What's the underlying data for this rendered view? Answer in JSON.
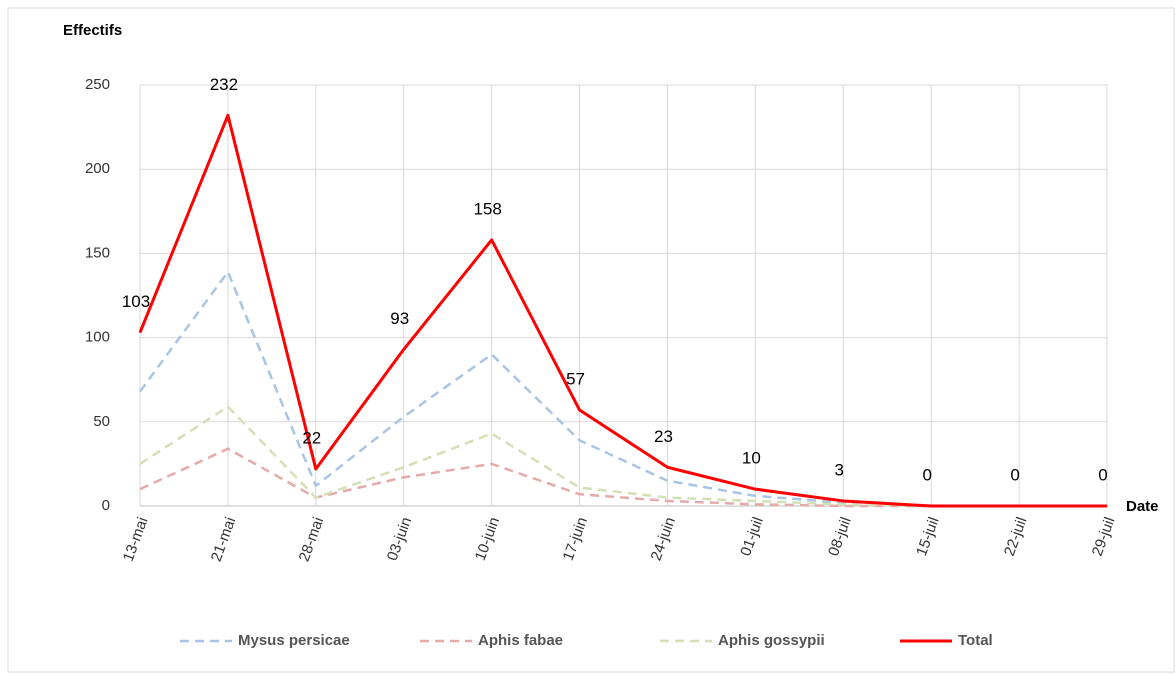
{
  "chart_data": {
    "type": "line",
    "y_label": "Effectifs",
    "x_label": "Date",
    "categories": [
      "13-mai",
      "21-mai",
      "28-mai",
      "03-juin",
      "10-juin",
      "17-juin",
      "24-juin",
      "01-juil",
      "08-juil",
      "15-juil",
      "22-juil",
      "29-juil"
    ],
    "series": [
      {
        "name": "Mysus persicae",
        "color": "#a9c4e4",
        "dash": true,
        "values": [
          68,
          139,
          12,
          53,
          90,
          39,
          15,
          6,
          2,
          0,
          0,
          0
        ]
      },
      {
        "name": "Aphis fabae",
        "color": "#e6aaaa",
        "dash": true,
        "values": [
          10,
          34,
          5,
          17,
          25,
          7,
          3,
          1,
          0,
          0,
          0,
          0
        ]
      },
      {
        "name": "Aphis gossypii",
        "color": "#d4e0b4",
        "dash": true,
        "values": [
          25,
          59,
          5,
          23,
          43,
          11,
          5,
          3,
          1,
          0,
          0,
          0
        ]
      },
      {
        "name": "Total",
        "color": "#ff0000",
        "dash": false,
        "labels": true,
        "values": [
          103,
          232,
          22,
          93,
          158,
          57,
          23,
          10,
          3,
          0,
          0,
          0
        ]
      }
    ],
    "ylim": [
      0,
      250
    ],
    "yticks": [
      0,
      50,
      100,
      150,
      200,
      250
    ],
    "grid": true
  }
}
